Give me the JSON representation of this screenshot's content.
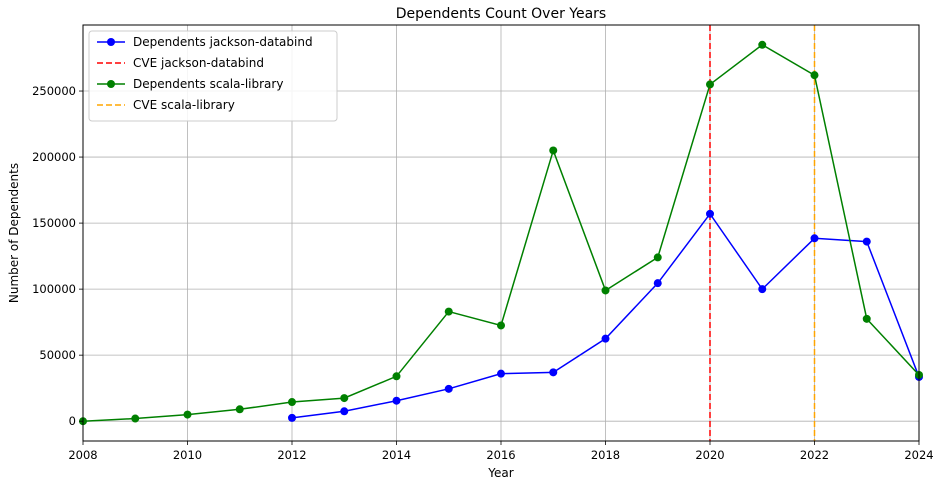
{
  "chart_data": {
    "type": "line",
    "title": "Dependents Count Over Years",
    "xlabel": "Year",
    "ylabel": "Number of Dependents",
    "xlim": [
      2008,
      2024
    ],
    "ylim": [
      -15000,
      300000
    ],
    "x_ticks": [
      2008,
      2010,
      2012,
      2014,
      2016,
      2018,
      2020,
      2022,
      2024
    ],
    "y_ticks": [
      0,
      50000,
      100000,
      150000,
      200000,
      250000
    ],
    "grid": true,
    "legend_position": "top-left",
    "series": [
      {
        "name": "Dependents jackson-databind",
        "color": "#0000ff",
        "marker": "circle",
        "x": [
          2012,
          2013,
          2014,
          2015,
          2016,
          2017,
          2018,
          2019,
          2020,
          2021,
          2022,
          2023,
          2024
        ],
        "y": [
          2500,
          7500,
          15500,
          24500,
          36000,
          37000,
          62500,
          104500,
          157000,
          100000,
          138500,
          136000,
          33500
        ]
      },
      {
        "name": "Dependents scala-library",
        "color": "#008000",
        "marker": "circle",
        "x": [
          2008,
          2009,
          2010,
          2011,
          2012,
          2013,
          2014,
          2015,
          2016,
          2017,
          2018,
          2019,
          2020,
          2021,
          2022,
          2023,
          2024
        ],
        "y": [
          0,
          2000,
          5000,
          9000,
          14500,
          17500,
          34000,
          83000,
          72500,
          205000,
          99000,
          124000,
          255000,
          285000,
          262000,
          77500,
          35000
        ]
      }
    ],
    "vlines": [
      {
        "name": "CVE jackson-databind",
        "x": 2020,
        "color": "#ff0000",
        "style": "dashed"
      },
      {
        "name": "CVE scala-library",
        "x": 2022,
        "color": "#ffa500",
        "style": "dashed"
      }
    ],
    "legend": [
      {
        "label": "Dependents jackson-databind",
        "kind": "line-marker",
        "color": "#0000ff"
      },
      {
        "label": "CVE jackson-databind",
        "kind": "dashed",
        "color": "#ff0000"
      },
      {
        "label": "Dependents scala-library",
        "kind": "line-marker",
        "color": "#008000"
      },
      {
        "label": "CVE scala-library",
        "kind": "dashed",
        "color": "#ffa500"
      }
    ]
  }
}
